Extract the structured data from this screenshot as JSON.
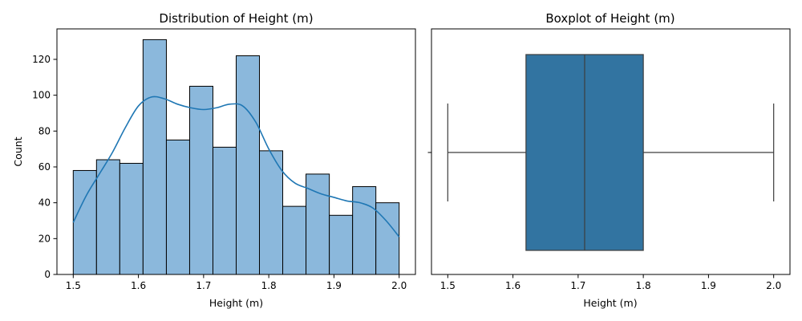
{
  "chart_data": [
    {
      "type": "bar",
      "title": "Distribution of Height (m)",
      "xlabel": "Height (m)",
      "ylabel": "Count",
      "xlim": [
        1.475,
        2.025
      ],
      "ylim": [
        0,
        137
      ],
      "xticks": [
        1.5,
        1.6,
        1.7,
        1.8,
        1.9,
        2.0
      ],
      "xtick_labels": [
        "1.5",
        "1.6",
        "1.7",
        "1.8",
        "1.9",
        "2.0"
      ],
      "yticks": [
        0,
        20,
        40,
        60,
        80,
        100,
        120
      ],
      "ytick_labels": [
        "0",
        "20",
        "40",
        "60",
        "80",
        "100",
        "120"
      ],
      "bins": [
        [
          1.5,
          1.5357
        ],
        [
          1.5357,
          1.5714
        ],
        [
          1.5714,
          1.6071
        ],
        [
          1.6071,
          1.6429
        ],
        [
          1.6429,
          1.6786
        ],
        [
          1.6786,
          1.7143
        ],
        [
          1.7143,
          1.75
        ],
        [
          1.75,
          1.7857
        ],
        [
          1.7857,
          1.8214
        ],
        [
          1.8214,
          1.8571
        ],
        [
          1.8571,
          1.8929
        ],
        [
          1.8929,
          1.9286
        ],
        [
          1.9286,
          1.9643
        ],
        [
          1.9643,
          2.0
        ]
      ],
      "values": [
        58,
        64,
        62,
        131,
        75,
        105,
        71,
        122,
        69,
        38,
        56,
        33,
        49,
        40
      ],
      "kde": {
        "x": [
          1.5,
          1.52,
          1.54,
          1.56,
          1.58,
          1.6,
          1.62,
          1.64,
          1.66,
          1.68,
          1.7,
          1.72,
          1.74,
          1.76,
          1.78,
          1.8,
          1.82,
          1.84,
          1.86,
          1.88,
          1.9,
          1.92,
          1.94,
          1.96,
          1.98,
          2.0
        ],
        "y": [
          29,
          44,
          56,
          68,
          82,
          94,
          99,
          98,
          95,
          93,
          92,
          93,
          95,
          94,
          85,
          70,
          58,
          51,
          48,
          45,
          43,
          41,
          40,
          37,
          30,
          21
        ]
      },
      "colors": {
        "bar_fill": "#8bb8dc",
        "bar_edge": "#000000",
        "kde_line": "#1f77b4"
      }
    },
    {
      "type": "box",
      "title": "Boxplot of Height (m)",
      "xlabel": "Height (m)",
      "xlim": [
        1.475,
        2.025
      ],
      "xticks": [
        1.5,
        1.6,
        1.7,
        1.8,
        1.9,
        2.0
      ],
      "xtick_labels": [
        "1.5",
        "1.6",
        "1.7",
        "1.8",
        "1.9",
        "2.0"
      ],
      "stats": {
        "min": 1.5,
        "q1": 1.62,
        "median": 1.71,
        "q3": 1.8,
        "max": 2.0
      },
      "colors": {
        "box_fill": "#3274a1",
        "line": "#3d3d3d"
      }
    }
  ]
}
